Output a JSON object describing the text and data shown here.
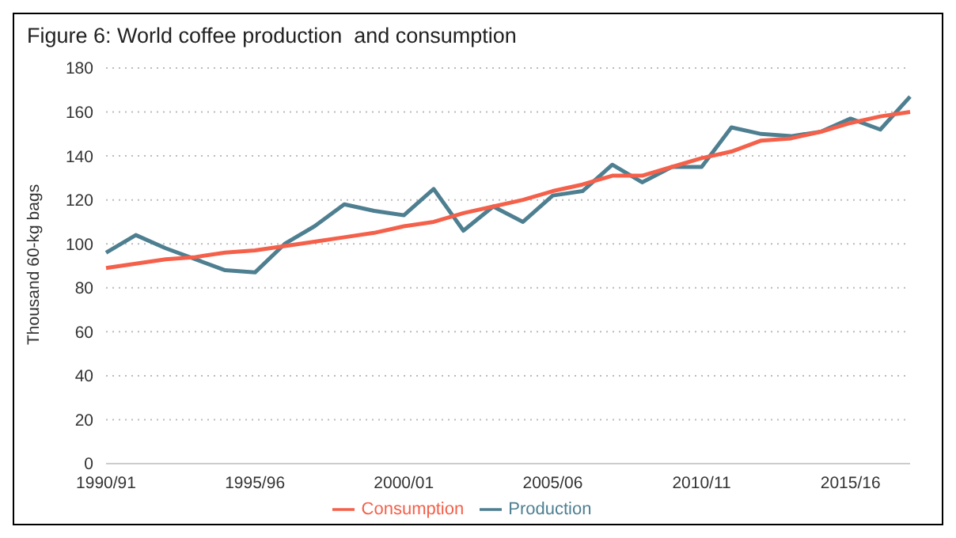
{
  "chart_data": {
    "type": "line",
    "title": "Figure 6: World coffee production  and consumption",
    "ylabel": "Thousand 60-kg bags",
    "categories": [
      "1990/91",
      null,
      null,
      null,
      null,
      "1995/96",
      null,
      null,
      null,
      null,
      "2000/01",
      null,
      null,
      null,
      null,
      "2005/06",
      null,
      null,
      null,
      null,
      "2010/11",
      null,
      null,
      null,
      null,
      "2015/16",
      null,
      null
    ],
    "series": [
      {
        "name": "Production",
        "color": "#4e7f91",
        "values": [
          96,
          104,
          98,
          93,
          88,
          87,
          100,
          108,
          118,
          115,
          113,
          125,
          106,
          117,
          110,
          122,
          124,
          136,
          128,
          135,
          135,
          153,
          150,
          149,
          151,
          157,
          152,
          167
        ]
      },
      {
        "name": "Consumption",
        "color": "#f4604a",
        "values": [
          89,
          91,
          93,
          94,
          96,
          97,
          99,
          101,
          103,
          105,
          108,
          110,
          114,
          117,
          120,
          124,
          127,
          131,
          131,
          135,
          139,
          142,
          147,
          148,
          151,
          155,
          158,
          160
        ]
      }
    ],
    "ylim": [
      0,
      180
    ],
    "yticks": [
      0,
      20,
      40,
      60,
      80,
      100,
      120,
      140,
      160,
      180
    ],
    "grid": "y",
    "legend": "bottom",
    "marker": "none",
    "line_style": "solid"
  }
}
